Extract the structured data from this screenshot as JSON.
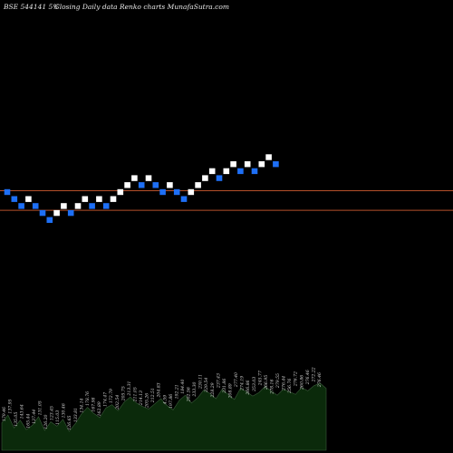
{
  "header": {
    "symbol": "BSE 544141 5%",
    "title": "Closing Daily data  Renko  charts MunafaSutra.com"
  },
  "colors": {
    "background": "#000000",
    "brick_up": "#ffffff",
    "brick_down": "#1e6ff5",
    "box_line": "#b4502a",
    "volume_fill": "#0b2a0b",
    "volume_stroke": "#3a5a3a"
  },
  "chart_data": {
    "type": "renko",
    "directions": [
      "down",
      "down",
      "down",
      "up",
      "down",
      "down",
      "down",
      "up",
      "up",
      "down",
      "up",
      "up",
      "down",
      "up",
      "down",
      "up",
      "up",
      "up",
      "up",
      "down",
      "up",
      "down",
      "down",
      "up",
      "down",
      "down",
      "up",
      "up",
      "up",
      "up",
      "down",
      "up",
      "up",
      "down",
      "up",
      "down",
      "up",
      "up",
      "down"
    ],
    "levels": [
      0,
      -1,
      -2,
      -1,
      -2,
      -3,
      -4,
      -3,
      -2,
      -3,
      -2,
      -1,
      -2,
      -1,
      -2,
      -1,
      0,
      1,
      2,
      1,
      2,
      1,
      0,
      1,
      0,
      -1,
      0,
      1,
      2,
      3,
      2,
      3,
      4,
      3,
      4,
      3,
      4,
      5,
      4
    ],
    "box_range_levels": [
      -4,
      0
    ],
    "volume_labels": [
      "179.46",
      "137.95",
      "135.05",
      "143.64",
      "165.44",
      "137.44",
      "131.05",
      "126.20",
      "123.45",
      "115.03",
      "130.46",
      "126.65",
      "133.81",
      "134.14",
      "178.76",
      "167.98",
      "162.89",
      "174.47",
      "172.79",
      "202.54",
      "205.75",
      "213.31",
      "211.05",
      "214.13",
      "205.26",
      "212.51",
      "204.83",
      "4.59",
      "197.86",
      "192.21",
      "184.40",
      "202.56",
      "233.30",
      "230.11",
      "229.54",
      "228.29",
      "237.43",
      "231.86",
      "208.89",
      "277.40",
      "274.19",
      "266.86",
      "253.03",
      "245.77",
      "266.95",
      "278.16",
      "279.55",
      "276.44",
      "256.76",
      "276.72",
      "260.86",
      "276.46",
      "272.22",
      "276.46"
    ],
    "volume_values": [
      3.2,
      4.1,
      2.6,
      3.5,
      2.4,
      2.9,
      3.9,
      2.3,
      3.3,
      2.8,
      3.6,
      2.2,
      3.1,
      4.2,
      5.0,
      4.3,
      3.8,
      4.9,
      5.3,
      4.6,
      5.6,
      6.2,
      5.5,
      5.1,
      4.8,
      5.4,
      6.0,
      5.2,
      4.7,
      5.8,
      6.4,
      5.5,
      6.1,
      7.0,
      6.6,
      6.0,
      7.1,
      6.5,
      5.9,
      7.2,
      6.8,
      6.3,
      6.7,
      7.4,
      6.9,
      6.4,
      7.1,
      6.8,
      6.5,
      7.3,
      6.9,
      7.5,
      7.8,
      7.2
    ]
  }
}
